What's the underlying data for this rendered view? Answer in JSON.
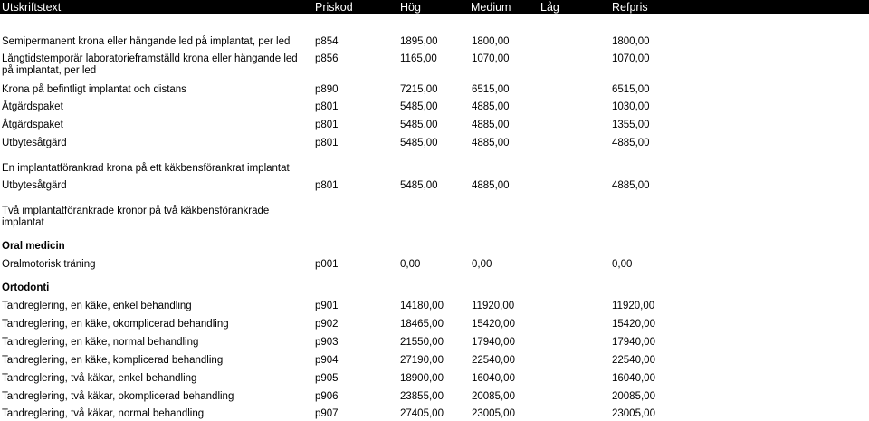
{
  "header": {
    "description": "Utskriftstext",
    "code": "Priskod",
    "high": "Hög",
    "medium": "Medium",
    "low": "Låg",
    "refund": "Refpris"
  },
  "rows": [
    {
      "desc": "Semipermanent krona eller hängande led på implantat, per led",
      "code": "p854",
      "high": "1895,00",
      "medium": "1800,00",
      "refund": "1800,00"
    },
    {
      "desc": "Långtidstemporär laboratorieframställd krona eller hängande led på implantat, per led",
      "code": "p856",
      "high": "1165,00",
      "medium": "1070,00",
      "refund": "1070,00"
    },
    {
      "desc": "Krona på befintligt implantat och distans",
      "code": "p890",
      "high": "7215,00",
      "medium": "6515,00",
      "refund": "6515,00"
    },
    {
      "desc": "Åtgärdspaket",
      "code": "p801",
      "high": "5485,00",
      "medium": "4885,00",
      "refund": "1030,00"
    },
    {
      "desc": "Åtgärdspaket",
      "code": "p801",
      "high": "5485,00",
      "medium": "4885,00",
      "refund": "1355,00"
    },
    {
      "desc": "Utbytesåtgärd",
      "code": "p801",
      "high": "5485,00",
      "medium": "4885,00",
      "refund": "4885,00"
    },
    {
      "desc": "Utbytesåtgärd",
      "code": "p801",
      "high": "5485,00",
      "medium": "4885,00",
      "refund": "4885,00"
    },
    {
      "desc": "Oralmotorisk träning",
      "code": "p001",
      "high": "0,00",
      "medium": "0,00",
      "refund": "0,00"
    },
    {
      "desc": "Tandreglering, en käke, enkel behandling",
      "code": "p901",
      "high": "14180,00",
      "medium": "11920,00",
      "refund": "11920,00"
    },
    {
      "desc": "Tandreglering, en käke, okomplicerad behandling",
      "code": "p902",
      "high": "18465,00",
      "medium": "15420,00",
      "refund": "15420,00"
    },
    {
      "desc": "Tandreglering, en käke, normal behandling",
      "code": "p903",
      "high": "21550,00",
      "medium": "17940,00",
      "refund": "17940,00"
    },
    {
      "desc": "Tandreglering, en käke, komplicerad behandling",
      "code": "p904",
      "high": "27190,00",
      "medium": "22540,00",
      "refund": "22540,00"
    },
    {
      "desc": "Tandreglering, två käkar, enkel behandling",
      "code": "p905",
      "high": "18900,00",
      "medium": "16040,00",
      "refund": "16040,00"
    },
    {
      "desc": "Tandreglering, två käkar, okomplicerad behandling",
      "code": "p906",
      "high": "23855,00",
      "medium": "20085,00",
      "refund": "20085,00"
    },
    {
      "desc": "Tandreglering, två käkar, normal behandling",
      "code": "p907",
      "high": "27405,00",
      "medium": "23005,00",
      "refund": "23005,00"
    }
  ],
  "groups": {
    "single_implant": "En implantatförankrad krona på ett käkbensförankrat implantat",
    "two_implants": "Två implantatförankrade kronor på två käkbensförankrade implantat"
  },
  "sections": {
    "oral": "Oral medicin",
    "ortho": "Ortodonti"
  }
}
